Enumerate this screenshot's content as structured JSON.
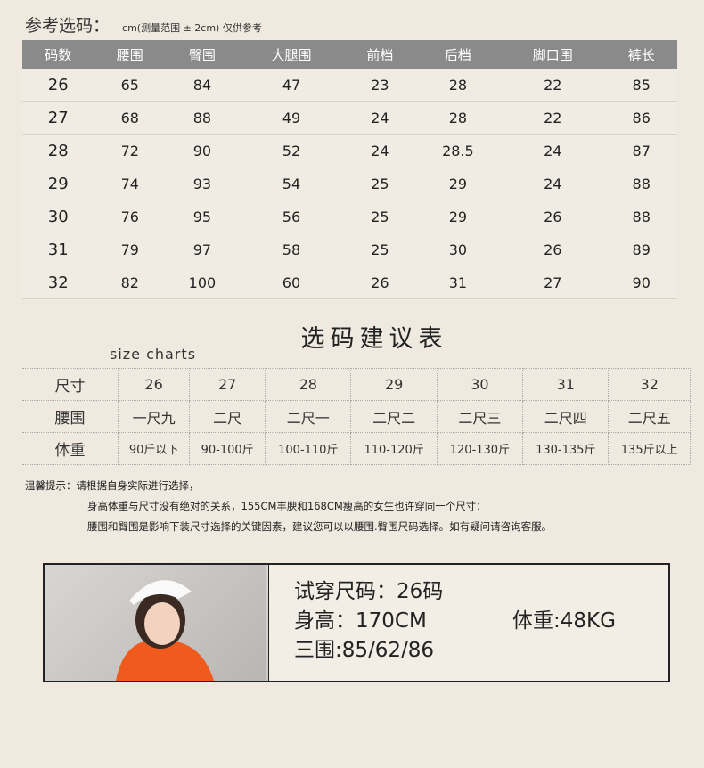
{
  "header": {
    "title": "参考选码：",
    "note": "cm(测量范围 ± 2cm) 仅供参考"
  },
  "size_table": {
    "columns": [
      "码数",
      "腰围",
      "臀围",
      "大腿围",
      "前档",
      "后档",
      "脚口围",
      "裤长"
    ],
    "rows": [
      [
        "26",
        "65",
        "84",
        "47",
        "23",
        "28",
        "22",
        "85"
      ],
      [
        "27",
        "68",
        "88",
        "49",
        "24",
        "28",
        "22",
        "86"
      ],
      [
        "28",
        "72",
        "90",
        "52",
        "24",
        "28.5",
        "24",
        "87"
      ],
      [
        "29",
        "74",
        "93",
        "54",
        "25",
        "29",
        "24",
        "88"
      ],
      [
        "30",
        "76",
        "95",
        "56",
        "25",
        "29",
        "26",
        "88"
      ],
      [
        "31",
        "79",
        "97",
        "58",
        "25",
        "30",
        "26",
        "89"
      ],
      [
        "32",
        "82",
        "100",
        "60",
        "26",
        "31",
        "27",
        "90"
      ]
    ]
  },
  "guide": {
    "title": "选码建议表",
    "subtitle": "size charts",
    "rows": [
      [
        "尺寸",
        "26",
        "27",
        "28",
        "29",
        "30",
        "31",
        "32"
      ],
      [
        "腰围",
        "一尺九",
        "二尺",
        "二尺一",
        "二尺二",
        "二尺三",
        "二尺四",
        "二尺五"
      ],
      [
        "体重",
        "90斤以下",
        "90-100斤",
        "100-110斤",
        "110-120斤",
        "120-130斤",
        "130-135斤",
        "135斤以上"
      ]
    ]
  },
  "tips": [
    "温馨提示：请根据自身实际进行选择，",
    "身高体重与尺寸没有绝对的关系，155CM丰腴和168CM瘦高的女生也许穿同一个尺寸：",
    "腰围和臀围是影响下装尺寸选择的关键因素，建议您可以以腰围.臀围尺码选择。如有疑问请咨询客服。"
  ],
  "model": {
    "size": "试穿尺码：26码",
    "height": "身高：170CM",
    "weight": "体重:48KG",
    "measurements": "三围:85/62/86"
  }
}
